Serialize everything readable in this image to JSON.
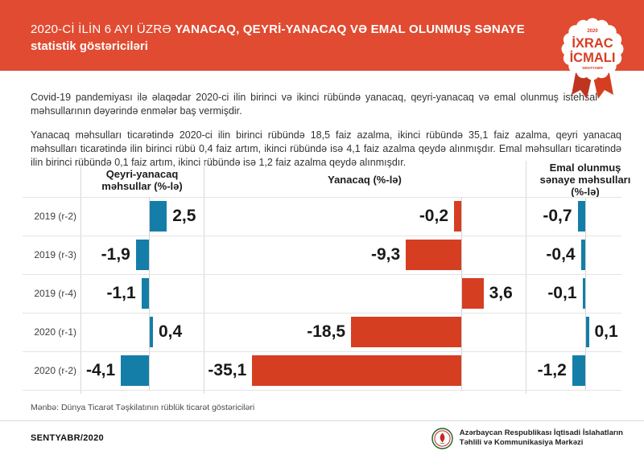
{
  "header": {
    "title_regular": "2020-Cİ İLİN 6 AYI ÜZRƏ ",
    "title_bold": "YANACAQ, QEYRİ-YANACAQ VƏ EMAL OLUNMUŞ SƏNAYE",
    "title_line2": "statistik göstəriciləri",
    "bg_color": "#E04B31"
  },
  "badge": {
    "year": "2020",
    "line1": "İXRAC",
    "line2": "İCMALI",
    "month": "SENTYABR",
    "text_color": "#D63E22"
  },
  "intro_paragraph": "Covid-19 pandemiyası ilə əlaqədar 2020-ci ilin birinci və ikinci rübündə yanacaq, qeyri-yanacaq və emal olunmuş istehsal məhsullarının dəyərində enmələr baş vermişdir.",
  "body_paragraph": "Yanacaq məhsulları ticarətində 2020-ci ilin birinci rübündə 18,5 faiz azalma, ikinci rübündə 35,1 faiz azalma, qeyri yanacaq məhsulları ticarətində ilin birinci rübü 0,4 faiz artım, ikinci rübündə isə 4,1 faiz azalma qeydə alınmışdır. Emal məhsulları ticarətində ilin birinci rübündə 0,1 faiz artım, ikinci rübündə isə 1,2 faiz azalma qeydə alınmışdır.",
  "chart_data": {
    "type": "bar",
    "orientation": "horizontal",
    "categories": [
      "2019 (r-2)",
      "2019 (r-3)",
      "2019 (r-4)",
      "2020 (r-1)",
      "2020 (r-2)"
    ],
    "series": [
      {
        "name": "Qeyri-yanacaq məhsullar (%-lə)",
        "values": [
          2.5,
          -1.9,
          -1.1,
          0.4,
          -4.1
        ],
        "color": "#147EA8"
      },
      {
        "name": "Yanacaq (%-lə)",
        "values": [
          -0.2,
          -9.3,
          3.6,
          -18.5,
          -35.1
        ],
        "color": "#D63E22"
      },
      {
        "name": "Emal olunmuş sənaye məhsulları (%-lə)",
        "values": [
          -0.7,
          -0.4,
          -0.1,
          0.1,
          -1.2
        ],
        "color": "#147EA8"
      }
    ],
    "value_labels": [
      [
        "2,5",
        "-1,9",
        "-1,1",
        "0,4",
        "-4,1"
      ],
      [
        "-0,2",
        "-9,3",
        "3,6",
        "-18,5",
        "-35,1"
      ],
      [
        "-0,7",
        "-0,4",
        "-0,1",
        "0,1",
        "-1,2"
      ]
    ],
    "grid": true,
    "legend_position": "column-headers"
  },
  "source_note": "Mənbə: Dünya Ticarət Təşkilatının rüblük ticarət göstəriciləri",
  "footer": {
    "issue": "SENTYABR/2020",
    "org_line1": "Azərbaycan Respublikası İqtisadi İslahatların",
    "org_line2": "Təhlili və Kommunikasiya Mərkəzi"
  }
}
